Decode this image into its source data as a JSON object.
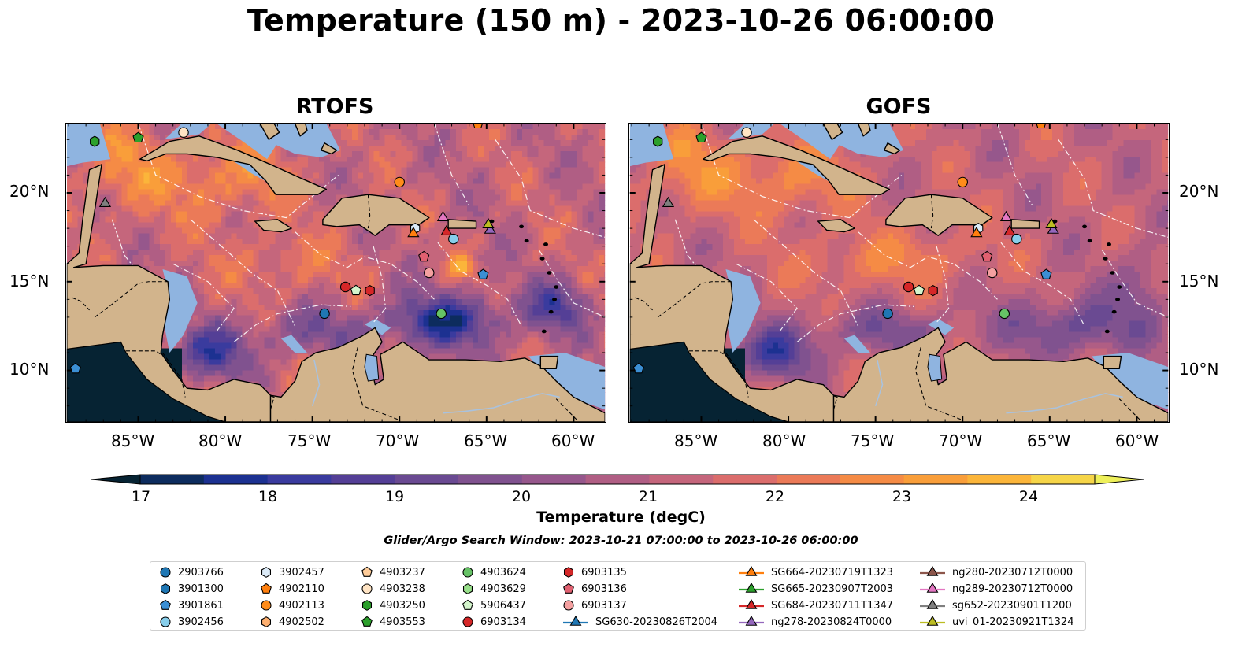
{
  "title": "Temperature (150 m) - 2023-10-26 06:00:00",
  "panels": [
    {
      "title": "RTOFS"
    },
    {
      "title": "GOFS"
    }
  ],
  "axes": {
    "lon_ticks": [
      "85°W",
      "80°W",
      "75°W",
      "70°W",
      "65°W",
      "60°W"
    ],
    "lat_ticks": [
      "20°N",
      "15°N",
      "10°N"
    ]
  },
  "colorbar": {
    "label": "Temperature (degC)",
    "ticks": [
      "17",
      "18",
      "19",
      "20",
      "21",
      "22",
      "23",
      "24"
    ],
    "colormap": "thermal"
  },
  "subtitle": "Glider/Argo Search Window: 2023-10-21 07:00:00 to 2023-10-26 06:00:00",
  "legend": {
    "argo": [
      {
        "label": "2903766",
        "color": "#1f77b4",
        "marker": "circle"
      },
      {
        "label": "3901300",
        "color": "#1f77b4",
        "marker": "hexagon"
      },
      {
        "label": "3901861",
        "color": "#3b8fd4",
        "marker": "pentagon"
      },
      {
        "label": "3902456",
        "color": "#87ceeb",
        "marker": "circle"
      },
      {
        "label": "3902457",
        "color": "#dbeaf7",
        "marker": "hexagon"
      },
      {
        "label": "4902110",
        "color": "#ff7f0e",
        "marker": "pentagon"
      },
      {
        "label": "4902113",
        "color": "#ff8c1a",
        "marker": "circle"
      },
      {
        "label": "4902502",
        "color": "#ffb070",
        "marker": "hexagon"
      },
      {
        "label": "4903237",
        "color": "#ffcc99",
        "marker": "pentagon"
      },
      {
        "label": "4903238",
        "color": "#ffe4c4",
        "marker": "circle"
      },
      {
        "label": "4903250",
        "color": "#2ca02c",
        "marker": "hexagon"
      },
      {
        "label": "4903553",
        "color": "#2ca02c",
        "marker": "pentagon"
      },
      {
        "label": "4903624",
        "color": "#66c266",
        "marker": "circle"
      },
      {
        "label": "4903629",
        "color": "#98df8a",
        "marker": "hexagon"
      },
      {
        "label": "5906437",
        "color": "#d4f5cc",
        "marker": "pentagon"
      },
      {
        "label": "6903134",
        "color": "#d62728",
        "marker": "circle"
      },
      {
        "label": "6903135",
        "color": "#d62728",
        "marker": "hexagon"
      },
      {
        "label": "6903136",
        "color": "#e06070",
        "marker": "pentagon"
      },
      {
        "label": "6903137",
        "color": "#f4a0a0",
        "marker": "circle"
      }
    ],
    "gliders": [
      {
        "label": "SG630-20230826T2004",
        "color": "#1f77b4"
      },
      {
        "label": "SG664-20230719T1323",
        "color": "#ff7f0e"
      },
      {
        "label": "SG665-20230907T2003",
        "color": "#2ca02c"
      },
      {
        "label": "SG684-20230711T1347",
        "color": "#d62728"
      },
      {
        "label": "ng278-20230824T0000",
        "color": "#9467bd"
      },
      {
        "label": "ng280-20230712T0000",
        "color": "#8c564b"
      },
      {
        "label": "ng289-20230712T0000",
        "color": "#e377c2"
      },
      {
        "label": "sg652-20230901T1200",
        "color": "#7f7f7f"
      },
      {
        "label": "uvi_01-20230921T1324",
        "color": "#bcbd22"
      }
    ]
  },
  "colors": {
    "land": "#d2b48c",
    "shallow_water": "#8fb4e0",
    "coastline": "#000000"
  }
}
